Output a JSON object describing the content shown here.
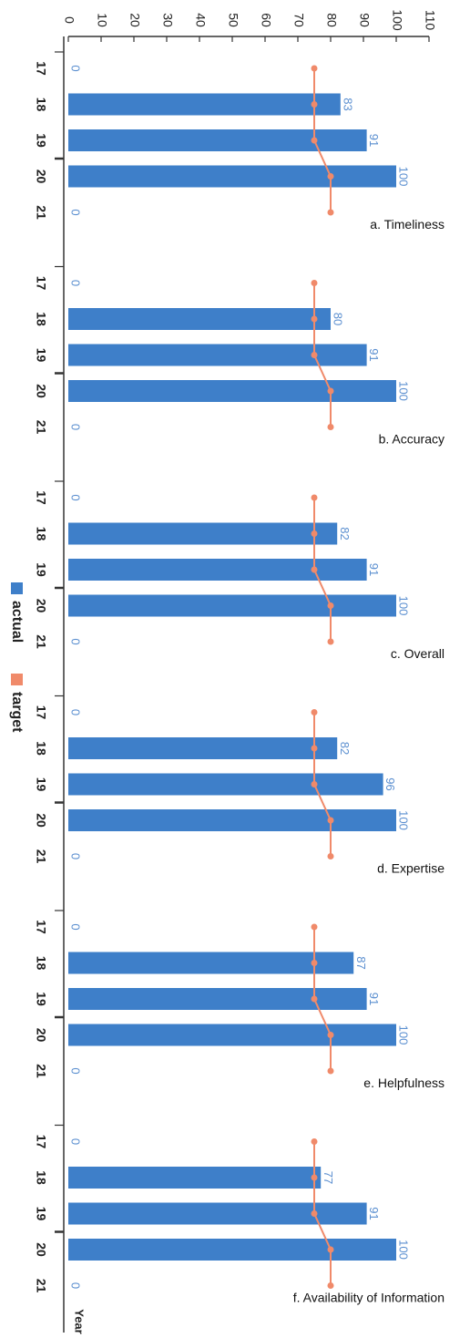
{
  "chart_data": {
    "type": "bar",
    "orientation": "rotated-90-clockwise",
    "value_axis": {
      "range": [
        0,
        110
      ],
      "ticks": [
        "0",
        "10",
        "20",
        "30",
        "40",
        "50",
        "60",
        "70",
        "80",
        "90",
        "100",
        "110"
      ]
    },
    "category_axis_label": "Year",
    "categories": [
      "17",
      "18",
      "19",
      "20",
      "21"
    ],
    "legend": {
      "placement": "left",
      "items": [
        {
          "label": "actual",
          "color": "#3e7fc9"
        },
        {
          "label": "target",
          "color": "#f08a6a"
        }
      ]
    },
    "colors": {
      "bar": "#3e7fc9",
      "bar_label": "#5b8fd0",
      "line": "#f08a6a"
    },
    "panels": [
      {
        "title": "a. Timeliness",
        "actual": [
          0,
          83,
          91,
          100,
          0
        ],
        "labels": [
          "0",
          "83",
          "91",
          "100",
          "0"
        ],
        "target": [
          75,
          75,
          75,
          80,
          80
        ]
      },
      {
        "title": "b. Accuracy",
        "actual": [
          0,
          80,
          91,
          100,
          0
        ],
        "labels": [
          "0",
          "80",
          "91",
          "100",
          "0"
        ],
        "target": [
          75,
          75,
          75,
          80,
          80
        ]
      },
      {
        "title": "c. Overall",
        "actual": [
          0,
          82,
          91,
          100,
          0
        ],
        "labels": [
          "0",
          "82",
          "91",
          "100",
          "0"
        ],
        "target": [
          75,
          75,
          75,
          80,
          80
        ]
      },
      {
        "title": "d. Expertise",
        "actual": [
          0,
          82,
          96,
          100,
          0
        ],
        "labels": [
          "0",
          "82",
          "96",
          "100",
          "0"
        ],
        "target": [
          75,
          75,
          75,
          80,
          80
        ]
      },
      {
        "title": "e. Helpfulness",
        "actual": [
          0,
          87,
          91,
          100,
          0
        ],
        "labels": [
          "0",
          "87",
          "91",
          "100",
          "0"
        ],
        "target": [
          75,
          75,
          75,
          80,
          80
        ]
      },
      {
        "title": "f. Availability of Information",
        "actual": [
          0,
          77,
          91,
          100,
          0
        ],
        "labels": [
          "0",
          "77",
          "91",
          "100",
          "0"
        ],
        "target": [
          75,
          75,
          75,
          80,
          80
        ]
      }
    ]
  }
}
